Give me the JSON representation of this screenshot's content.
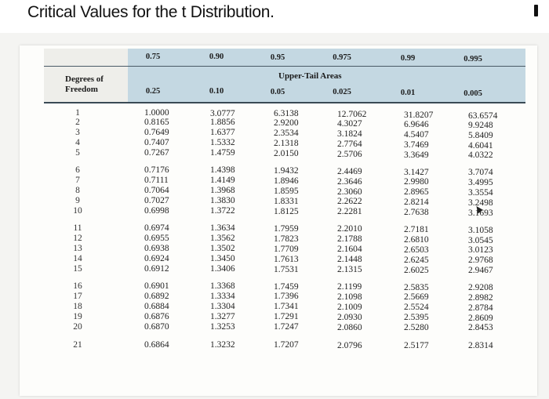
{
  "title": "Critical Values for the t Distribution.",
  "table": {
    "degrees_label_line1": "Degrees of",
    "degrees_label_line2": "Freedom",
    "upper_tail_label": "Upper-Tail Areas",
    "cumulative": [
      "0.75",
      "0.90",
      "0.95",
      "0.975",
      "0.99",
      "0.995"
    ],
    "upper_tail": [
      "0.25",
      "0.10",
      "0.05",
      "0.025",
      "0.01",
      "0.005"
    ],
    "rows": [
      {
        "df": "1",
        "values": [
          "1.0000",
          "3.0777",
          "6.3138",
          "12.7062",
          "31.8207",
          "63.6574"
        ]
      },
      {
        "df": "2",
        "values": [
          "0.8165",
          "1.8856",
          "2.9200",
          "4.3027",
          "6.9646",
          "9.9248"
        ]
      },
      {
        "df": "3",
        "values": [
          "0.7649",
          "1.6377",
          "2.3534",
          "3.1824",
          "4.5407",
          "5.8409"
        ]
      },
      {
        "df": "4",
        "values": [
          "0.7407",
          "1.5332",
          "2.1318",
          "2.7764",
          "3.7469",
          "4.6041"
        ]
      },
      {
        "df": "5",
        "values": [
          "0.7267",
          "1.4759",
          "2.0150",
          "2.5706",
          "3.3649",
          "4.0322"
        ]
      },
      {
        "df": "6",
        "values": [
          "0.7176",
          "1.4398",
          "1.9432",
          "2.4469",
          "3.1427",
          "3.7074"
        ]
      },
      {
        "df": "7",
        "values": [
          "0.7111",
          "1.4149",
          "1.8946",
          "2.3646",
          "2.9980",
          "3.4995"
        ]
      },
      {
        "df": "8",
        "values": [
          "0.7064",
          "1.3968",
          "1.8595",
          "2.3060",
          "2.8965",
          "3.3554"
        ]
      },
      {
        "df": "9",
        "values": [
          "0.7027",
          "1.3830",
          "1.8331",
          "2.2622",
          "2.8214",
          "3.2498"
        ]
      },
      {
        "df": "10",
        "values": [
          "0.6998",
          "1.3722",
          "1.8125",
          "2.2281",
          "2.7638",
          "3.1693"
        ]
      },
      {
        "df": "11",
        "values": [
          "0.6974",
          "1.3634",
          "1.7959",
          "2.2010",
          "2.7181",
          "3.1058"
        ]
      },
      {
        "df": "12",
        "values": [
          "0.6955",
          "1.3562",
          "1.7823",
          "2.1788",
          "2.6810",
          "3.0545"
        ]
      },
      {
        "df": "13",
        "values": [
          "0.6938",
          "1.3502",
          "1.7709",
          "2.1604",
          "2.6503",
          "3.0123"
        ]
      },
      {
        "df": "14",
        "values": [
          "0.6924",
          "1.3450",
          "1.7613",
          "2.1448",
          "2.6245",
          "2.9768"
        ]
      },
      {
        "df": "15",
        "values": [
          "0.6912",
          "1.3406",
          "1.7531",
          "2.1315",
          "2.6025",
          "2.9467"
        ]
      },
      {
        "df": "16",
        "values": [
          "0.6901",
          "1.3368",
          "1.7459",
          "2.1199",
          "2.5835",
          "2.9208"
        ]
      },
      {
        "df": "17",
        "values": [
          "0.6892",
          "1.3334",
          "1.7396",
          "2.1098",
          "2.5669",
          "2.8982"
        ]
      },
      {
        "df": "18",
        "values": [
          "0.6884",
          "1.3304",
          "1.7341",
          "2.1009",
          "2.5524",
          "2.8784"
        ]
      },
      {
        "df": "19",
        "values": [
          "0.6876",
          "1.3277",
          "1.7291",
          "2.0930",
          "2.5395",
          "2.8609"
        ]
      },
      {
        "df": "20",
        "values": [
          "0.6870",
          "1.3253",
          "1.7247",
          "2.0860",
          "2.5280",
          "2.8453"
        ]
      },
      {
        "df": "21",
        "values": [
          "0.6864",
          "1.3232",
          "1.7207",
          "2.0796",
          "2.5177",
          "2.8314"
        ]
      }
    ]
  },
  "colors": {
    "header_band": "#c4d8e2",
    "page_background": "#f4f4f2",
    "text": "#222222"
  },
  "icons": {
    "cursor": "arrow-cursor-icon",
    "corner_mark": "minus-icon"
  }
}
